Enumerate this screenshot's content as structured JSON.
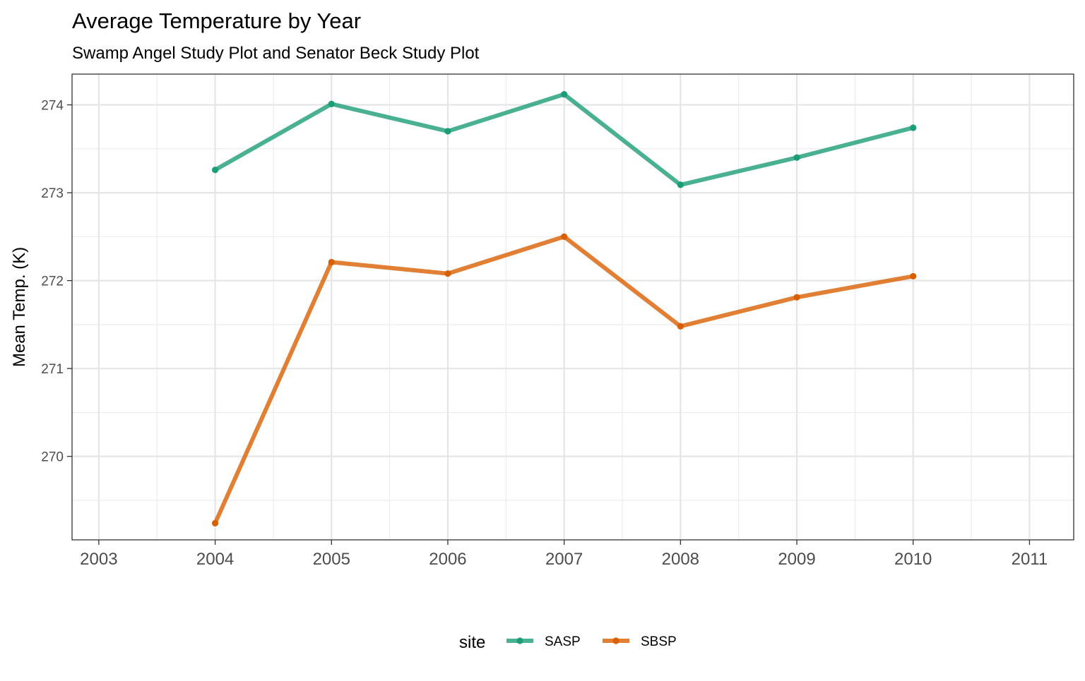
{
  "chart_data": {
    "type": "line",
    "title": "Average Temperature by Year",
    "subtitle": "Swamp Angel Study Plot and Senator Beck Study Plot",
    "xlabel": "",
    "ylabel": "Mean Temp. (K)",
    "x": [
      2004,
      2005,
      2006,
      2007,
      2008,
      2009,
      2010
    ],
    "x_ticks": [
      "2003",
      "2004",
      "2005",
      "2006",
      "2007",
      "2008",
      "2009",
      "2010",
      "2011"
    ],
    "y_ticks": [
      "270",
      "271",
      "272",
      "273",
      "274"
    ],
    "xlim": [
      2002.77,
      2011.38
    ],
    "ylim": [
      269.05,
      274.35
    ],
    "grid": true,
    "legend": {
      "title": "site",
      "position": "bottom"
    },
    "series": [
      {
        "name": "SASP",
        "color": "#1b9e77",
        "values": [
          273.26,
          274.01,
          273.7,
          274.12,
          273.09,
          273.4,
          273.74
        ]
      },
      {
        "name": "SBSP",
        "color": "#d95f02",
        "values": [
          269.24,
          272.21,
          272.08,
          272.5,
          271.48,
          271.81,
          272.05
        ]
      }
    ]
  }
}
